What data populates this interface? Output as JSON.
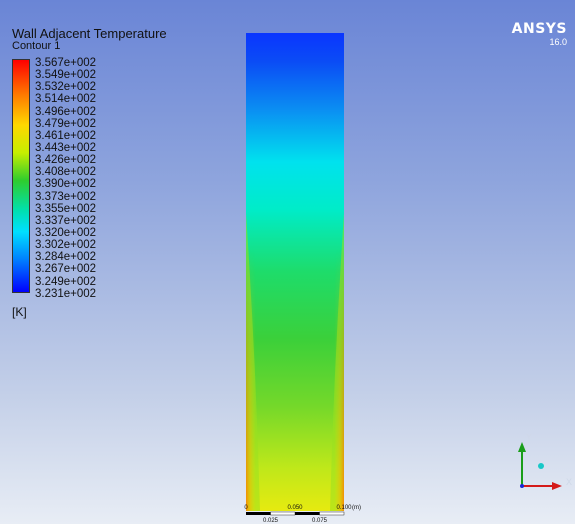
{
  "legend": {
    "title": "Wall Adjacent Temperature",
    "subtitle": "Contour 1",
    "unit": "[K]",
    "values": [
      "3.567e+002",
      "3.549e+002",
      "3.532e+002",
      "3.514e+002",
      "3.496e+002",
      "3.479e+002",
      "3.461e+002",
      "3.443e+002",
      "3.426e+002",
      "3.408e+002",
      "3.390e+002",
      "3.373e+002",
      "3.355e+002",
      "3.337e+002",
      "3.320e+002",
      "3.302e+002",
      "3.284e+002",
      "3.267e+002",
      "3.249e+002",
      "3.231e+002"
    ]
  },
  "logo": {
    "name": "ANSYS",
    "version": "16.0"
  },
  "scale_bar": {
    "top_labels": [
      "0",
      "0.050",
      "0.100"
    ],
    "unit": "(m)",
    "bottom_labels": [
      "0.025",
      "0.075"
    ]
  },
  "axes": {
    "x": "X",
    "y": "Y"
  },
  "colors": {
    "background_top": "#6a85d6",
    "background_bottom": "#e8edf5",
    "scale_max": "#ff0000",
    "scale_min": "#0000ff"
  }
}
